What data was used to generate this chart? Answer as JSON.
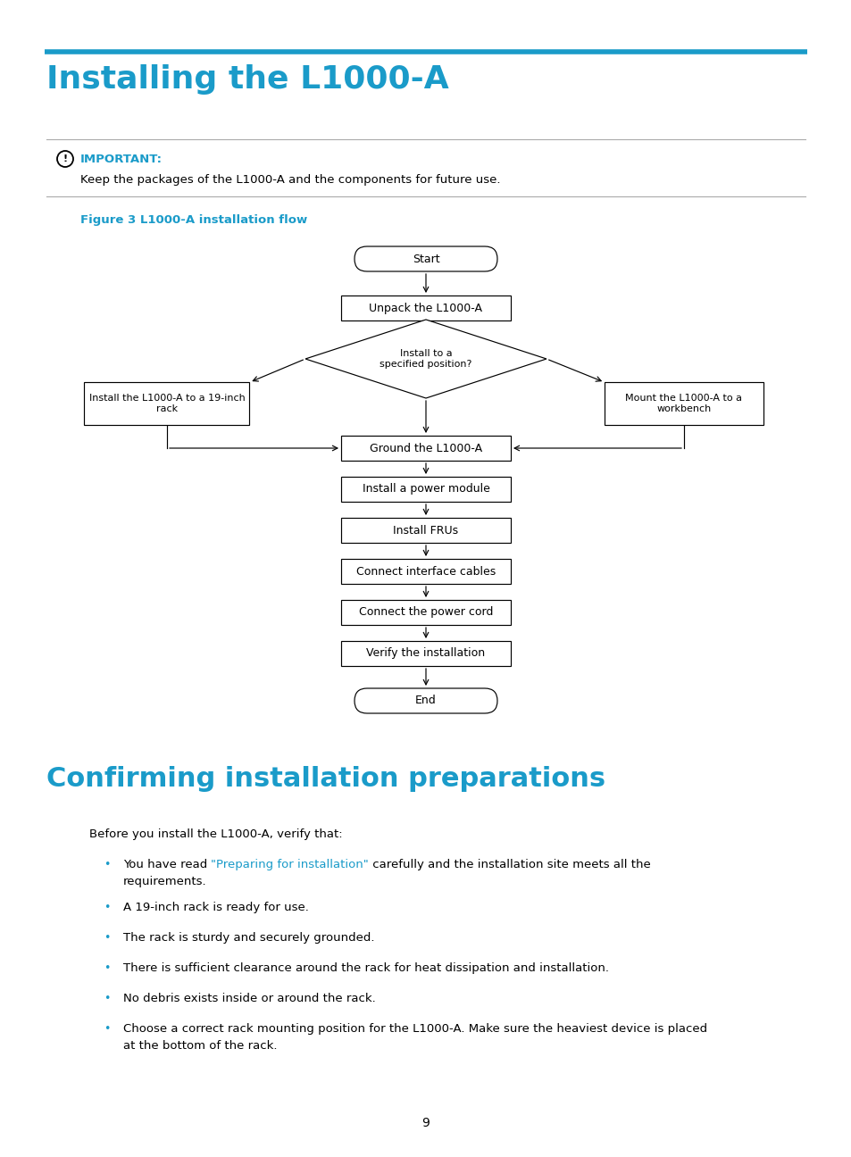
{
  "page_title": "Installing the L1000-A",
  "section2_title": "Confirming installation preparations",
  "title_color": "#1a9bc9",
  "important_label": "IMPORTANT:",
  "important_text": "Keep the packages of the L1000-A and the components for future use.",
  "figure_caption": "Figure 3 L1000-A installation flow",
  "body_text": "Before you install the L1000-A, verify that:",
  "bullet1_pre": "You have read ",
  "bullet1_link": "\"Preparing for installation\"",
  "bullet1_post": " carefully and the installation site meets all the",
  "bullet1_line2": "requirements.",
  "bullet2": "A 19-inch rack is ready for use.",
  "bullet3": "The rack is sturdy and securely grounded.",
  "bullet4": "There is sufficient clearance around the rack for heat dissipation and installation.",
  "bullet5": "No debris exists inside or around the rack.",
  "bullet6_line1": "Choose a correct rack mounting position for the L1000-A. Make sure the heaviest device is placed",
  "bullet6_line2": "at the bottom of the rack.",
  "page_number": "9",
  "bg_color": "#ffffff",
  "text_color": "#000000",
  "cyan": "#1a9bc9",
  "flowchart_font": "DejaVu Sans",
  "body_font": "DejaVu Sans"
}
